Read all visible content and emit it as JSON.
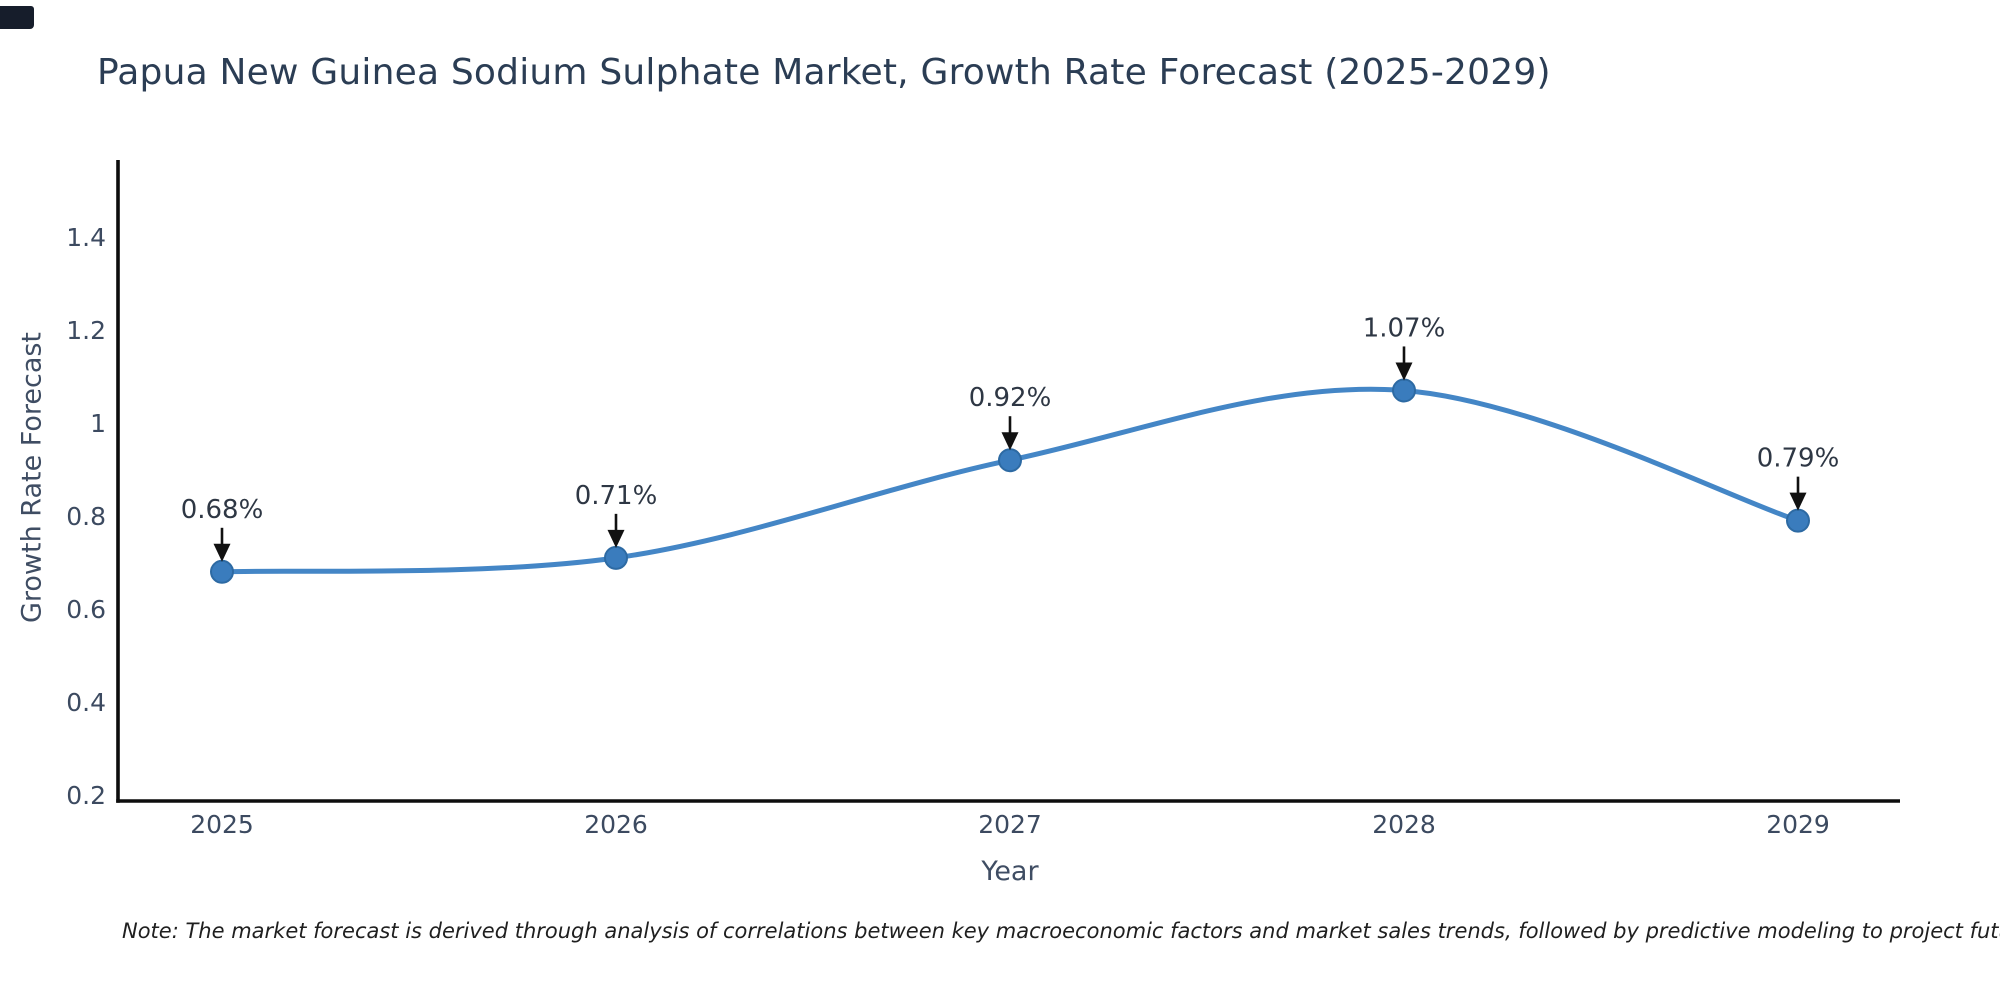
{
  "title": "Papua New Guinea Sodium Sulphate Market, Growth Rate Forecast (2025-2029)",
  "note": "Note: The market forecast is derived through analysis of correlations between key macroeconomic factors and market sales trends, followed by predictive modeling to project future sales",
  "chart_data": {
    "type": "line",
    "x": [
      2025,
      2026,
      2027,
      2028,
      2029
    ],
    "x_tick_labels": [
      "2025",
      "2026",
      "2027",
      "2028",
      "2029"
    ],
    "series": [
      {
        "name": "Growth Rate Forecast",
        "values": [
          0.68,
          0.71,
          0.92,
          1.07,
          0.79
        ]
      }
    ],
    "point_labels": [
      "0.68%",
      "0.71%",
      "0.92%",
      "1.07%",
      "0.79%"
    ],
    "xlabel": "Year",
    "ylabel": "Growth Rate Forecast",
    "y_tick_labels": [
      "0.2",
      "0.4",
      "0.6",
      "0.8",
      "1",
      "1.2",
      "1.4"
    ],
    "y_tick_values": [
      0.2,
      0.4,
      0.6,
      0.8,
      1.0,
      1.2,
      1.4
    ],
    "ylim": [
      0.2,
      1.57
    ],
    "grid": false,
    "legend": "none",
    "annotation_style": "value label with downward arrow above each point",
    "colors": {
      "line": "#4486c6",
      "marker": "#3a7cbd",
      "marker_edge": "#2d6aa3",
      "axis": "#0d0d0d",
      "title_text": "#2b3d54",
      "tick_text": "#3c4a60",
      "annotation_text": "#2e3744",
      "arrow": "#111111"
    }
  }
}
